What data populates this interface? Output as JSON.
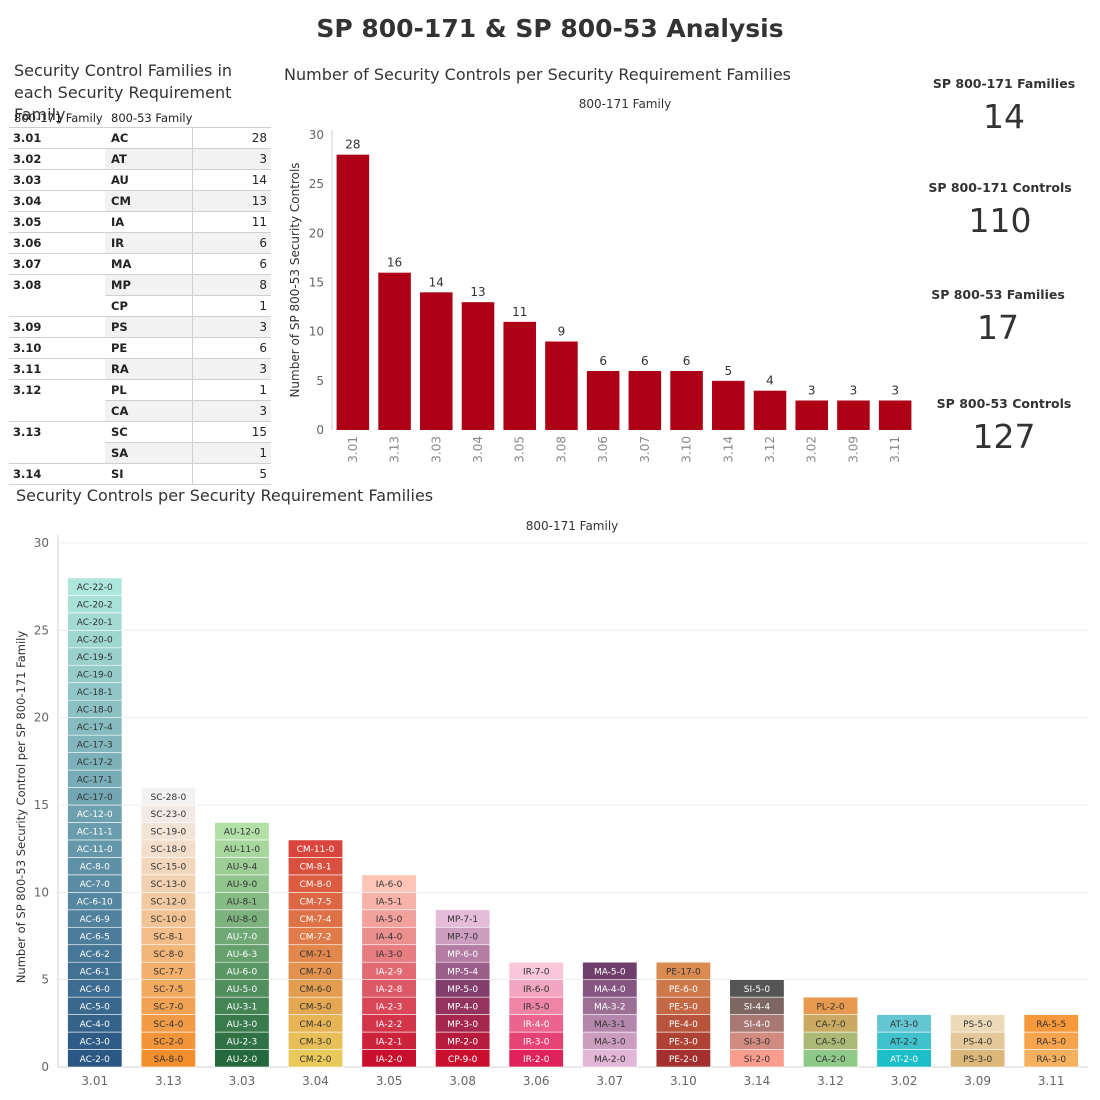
{
  "title": "SP 800-171 & SP 800-53 Analysis",
  "table": {
    "title": "Security Control Families in each Security Requirement Family",
    "headers": [
      "800-171 Family",
      "800-53 Family"
    ],
    "rows": [
      {
        "req": "3.01",
        "fam": "AC",
        "count": "28"
      },
      {
        "req": "3.02",
        "fam": "AT",
        "count": "3"
      },
      {
        "req": "3.03",
        "fam": "AU",
        "count": "14"
      },
      {
        "req": "3.04",
        "fam": "CM",
        "count": "13"
      },
      {
        "req": "3.05",
        "fam": "IA",
        "count": "11"
      },
      {
        "req": "3.06",
        "fam": "IR",
        "count": "6"
      },
      {
        "req": "3.07",
        "fam": "MA",
        "count": "6"
      },
      {
        "req": "3.08",
        "fam": "MP",
        "count": "8"
      },
      {
        "req": "",
        "fam": "CP",
        "count": "1"
      },
      {
        "req": "3.09",
        "fam": "PS",
        "count": "3"
      },
      {
        "req": "3.10",
        "fam": "PE",
        "count": "6"
      },
      {
        "req": "3.11",
        "fam": "RA",
        "count": "3"
      },
      {
        "req": "3.12",
        "fam": "PL",
        "count": "1"
      },
      {
        "req": "",
        "fam": "CA",
        "count": "3"
      },
      {
        "req": "3.13",
        "fam": "SC",
        "count": "15"
      },
      {
        "req": "",
        "fam": "SA",
        "count": "1"
      },
      {
        "req": "3.14",
        "fam": "SI",
        "count": "5"
      }
    ]
  },
  "kpis": [
    {
      "label": "SP 800-171 Families",
      "value": "14"
    },
    {
      "label": "SP 800-171 Controls",
      "value": "110"
    },
    {
      "label": "SP 800-53 Families",
      "value": "17"
    },
    {
      "label": "SP 800-53 Controls",
      "value": "127"
    }
  ],
  "chart_data": [
    {
      "type": "bar",
      "title": "Number of Security Controls per Security Requirement Families",
      "subtitle": "800-171 Family",
      "ylabel": "Number of SP 800-53 Security Controls",
      "xlabel": "",
      "ylim": [
        0,
        30
      ],
      "yticks": [
        0,
        5,
        10,
        15,
        20,
        25,
        30
      ],
      "categories": [
        "3.01",
        "3.13",
        "3.03",
        "3.04",
        "3.05",
        "3.08",
        "3.06",
        "3.07",
        "3.10",
        "3.14",
        "3.12",
        "3.02",
        "3.09",
        "3.11"
      ],
      "values": [
        28,
        16,
        14,
        13,
        11,
        9,
        6,
        6,
        6,
        5,
        4,
        3,
        3,
        3
      ],
      "color": "#ad0017",
      "grid": false
    },
    {
      "type": "bar",
      "stacked": true,
      "title": "Security Controls per Security Requirement Families",
      "subtitle": "800-171 Family",
      "ylabel": "Number of SP 800-53 Security Control per SP 800-171 Family",
      "xlabel": "",
      "ylim": [
        0,
        30
      ],
      "yticks": [
        0,
        5,
        10,
        15,
        20,
        25,
        30
      ],
      "grid": true,
      "categories": [
        "3.01",
        "3.13",
        "3.03",
        "3.04",
        "3.05",
        "3.08",
        "3.06",
        "3.07",
        "3.10",
        "3.14",
        "3.12",
        "3.02",
        "3.09",
        "3.11"
      ],
      "stacks": [
        {
          "category": "3.01",
          "colors": [
            "#2a5783",
            "#ade6da"
          ],
          "labels": [
            "AC-2-0",
            "AC-3-0",
            "AC-4-0",
            "AC-5-0",
            "AC-6-0",
            "AC-6-1",
            "AC-6-2",
            "AC-6-5",
            "AC-6-9",
            "AC-6-10",
            "AC-7-0",
            "AC-8-0",
            "AC-11-0",
            "AC-11-1",
            "AC-12-0",
            "AC-17-0",
            "AC-17-1",
            "AC-17-2",
            "AC-17-3",
            "AC-17-4",
            "AC-18-0",
            "AC-18-1",
            "AC-19-0",
            "AC-19-5",
            "AC-20-0",
            "AC-20-1",
            "AC-20-2",
            "AC-22-0"
          ]
        },
        {
          "category": "3.13",
          "colors": [
            "#f28e2b",
            "#f2f2f2"
          ],
          "labels": [
            "SA-8-0",
            "SC-2-0",
            "SC-4-0",
            "SC-7-0",
            "SC-7-5",
            "SC-7-7",
            "SC-8-0",
            "SC-8-1",
            "SC-10-0",
            "SC-12-0",
            "SC-13-0",
            "SC-15-0",
            "SC-18-0",
            "SC-19-0",
            "SC-23-0",
            "SC-28-0"
          ]
        },
        {
          "category": "3.03",
          "colors": [
            "#24693d",
            "#b3e0a6"
          ],
          "labels": [
            "AU-2-0",
            "AU-2-3",
            "AU-3-0",
            "AU-3-1",
            "AU-5-0",
            "AU-6-0",
            "AU-6-3",
            "AU-7-0",
            "AU-8-0",
            "AU-8-1",
            "AU-9-0",
            "AU-9-4",
            "AU-11-0",
            "AU-12-0"
          ]
        },
        {
          "category": "3.04",
          "colors": [
            "#e8c95a",
            "#d9453c"
          ],
          "labels": [
            "CM-2-0",
            "CM-3-0",
            "CM-4-0",
            "CM-5-0",
            "CM-6-0",
            "CM-7-0",
            "CM-7-1",
            "CM-7-2",
            "CM-7-4",
            "CM-7-5",
            "CM-8-0",
            "CM-8-1",
            "CM-11-0"
          ]
        },
        {
          "category": "3.05",
          "colors": [
            "#c8102e",
            "#fcc5b8"
          ],
          "labels": [
            "IA-2-0",
            "IA-2-1",
            "IA-2-2",
            "IA-2-3",
            "IA-2-8",
            "IA-2-9",
            "IA-3-0",
            "IA-4-0",
            "IA-5-0",
            "IA-5-1",
            "IA-6-0"
          ]
        },
        {
          "category": "3.08",
          "colors": [
            "#c8102e",
            "#823e6c",
            "#e6bcdb"
          ],
          "labels": [
            "CP-9-0",
            "MP-2-0",
            "MP-3-0",
            "MP-4-0",
            "MP-5-0",
            "MP-5-4",
            "MP-6-0",
            "MP-7-0",
            "MP-7-1"
          ]
        },
        {
          "category": "3.06",
          "colors": [
            "#e0225b",
            "#f9c6da"
          ],
          "labels": [
            "IR-2-0",
            "IR-3-0",
            "IR-4-0",
            "IR-5-0",
            "IR-6-0",
            "IR-7-0"
          ]
        },
        {
          "category": "3.07",
          "colors": [
            "#e2b6d6",
            "#6e3f6a"
          ],
          "labels": [
            "MA-2-0",
            "MA-3-0",
            "MA-3-1",
            "MA-3-2",
            "MA-4-0",
            "MA-5-0"
          ]
        },
        {
          "category": "3.10",
          "colors": [
            "#a3302e",
            "#d98b52"
          ],
          "labels": [
            "PE-2-0",
            "PE-3-0",
            "PE-4-0",
            "PE-5-0",
            "PE-6-0",
            "PE-17-0"
          ]
        },
        {
          "category": "3.14",
          "colors": [
            "#fa9d8e",
            "#555555"
          ],
          "labels": [
            "SI-2-0",
            "SI-3-0",
            "SI-4-0",
            "SI-4-4",
            "SI-5-0"
          ]
        },
        {
          "category": "3.12",
          "colors": [
            "#8fc98a",
            "#e79a4f"
          ],
          "labels": [
            "CA-2-0",
            "CA-5-0",
            "CA-7-0",
            "PL-2-0"
          ]
        },
        {
          "category": "3.02",
          "colors": [
            "#1bbec9",
            "#64c5d3"
          ],
          "labels": [
            "AT-2-0",
            "AT-2-2",
            "AT-3-0"
          ]
        },
        {
          "category": "3.09",
          "colors": [
            "#dcb77a",
            "#ecd9b8"
          ],
          "labels": [
            "PS-3-0",
            "PS-4-0",
            "PS-5-0"
          ]
        },
        {
          "category": "3.11",
          "colors": [
            "#f7b05e",
            "#f7983a"
          ],
          "labels": [
            "RA-3-0",
            "RA-5-0",
            "RA-5-5"
          ]
        }
      ]
    }
  ]
}
